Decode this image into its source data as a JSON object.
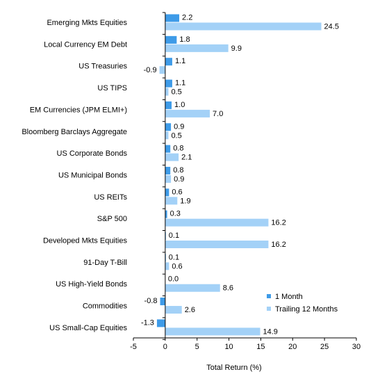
{
  "chart_data": {
    "type": "bar",
    "orientation": "horizontal",
    "categories": [
      "Emerging Mkts Equities",
      "Local Currency EM Debt",
      "US Treasuries",
      "US TIPS",
      "EM Currencies (JPM ELMI+)",
      "Bloomberg Barclays Aggregate",
      "US Corporate Bonds",
      "US Municipal Bonds",
      "US REITs",
      "S&P 500",
      "Developed Mkts Equities",
      "91-Day T-Bill",
      "US High-Yield Bonds",
      "Commodities",
      "US Small-Cap Equities"
    ],
    "series": [
      {
        "name": "1 Month",
        "color": "#3e9be8",
        "values": [
          2.2,
          1.8,
          1.1,
          1.1,
          1.0,
          0.9,
          0.8,
          0.8,
          0.6,
          0.3,
          0.1,
          0.1,
          0.0,
          -0.8,
          -1.3
        ],
        "labels": [
          "2.2",
          "1.8",
          "1.1",
          "1.1",
          "1.0",
          "0.9",
          "0.8",
          "0.8",
          "0.6",
          "0.3",
          "0.1",
          "0.1",
          "0.0",
          "-0.8",
          "-1.3"
        ]
      },
      {
        "name": "Trailing 12 Months",
        "color": "#a3d1f7",
        "values": [
          24.5,
          9.9,
          -0.9,
          0.5,
          7.0,
          0.5,
          2.1,
          0.9,
          1.9,
          16.2,
          16.2,
          0.6,
          8.6,
          2.6,
          14.9
        ],
        "labels": [
          "24.5",
          "9.9",
          "-0.9",
          "0.5",
          "7.0",
          "0.5",
          "2.1",
          "0.9",
          "1.9",
          "16.2",
          "16.2",
          "0.6",
          "8.6",
          "2.6",
          "14.9"
        ]
      }
    ],
    "xlabel": "Total Return (%)",
    "xlim": [
      -5,
      30
    ],
    "xticks": [
      -5,
      0,
      5,
      10,
      15,
      20,
      25,
      30
    ],
    "grid": false,
    "legend_position": "bottom-right"
  }
}
